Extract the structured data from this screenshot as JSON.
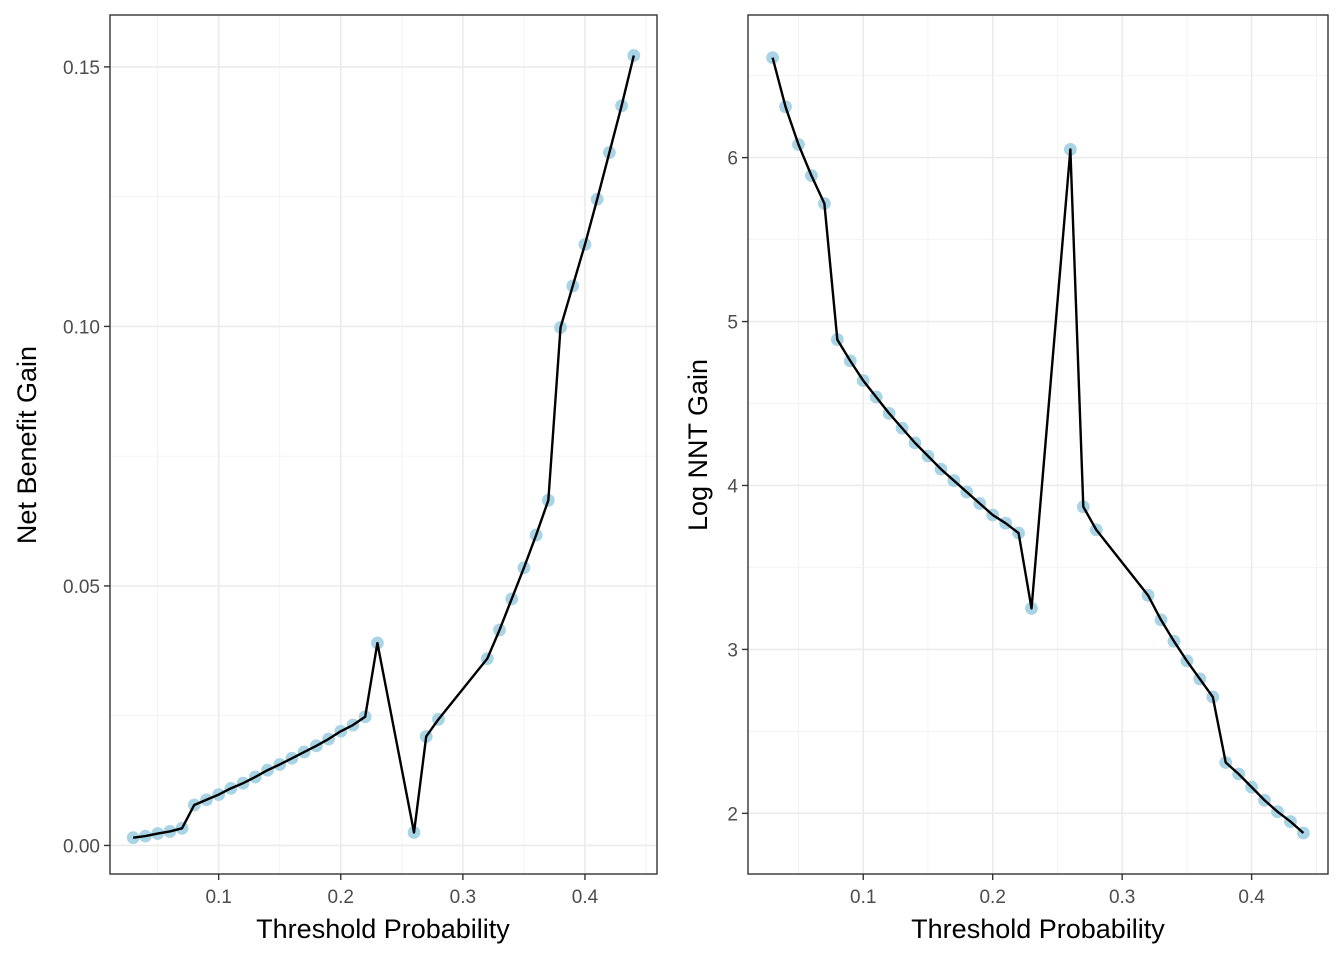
{
  "chart_data": [
    {
      "type": "line",
      "xlabel": "Threshold Probability",
      "ylabel": "Net Benefit Gain",
      "xlim": [
        0.011,
        0.459
      ],
      "ylim": [
        -0.0055,
        0.16
      ],
      "xticks": [
        0.1,
        0.2,
        0.3,
        0.4
      ],
      "xtick_labels": [
        "0.1",
        "0.2",
        "0.3",
        "0.4"
      ],
      "yticks": [
        0.0,
        0.05,
        0.1,
        0.15
      ],
      "ytick_labels": [
        "0.00",
        "0.05",
        "0.10",
        "0.15"
      ],
      "grid": true,
      "point_color": "#a8d4e6",
      "line_color": "#000000",
      "x": [
        0.03,
        0.04,
        0.05,
        0.06,
        0.07,
        0.08,
        0.09,
        0.1,
        0.11,
        0.12,
        0.13,
        0.14,
        0.15,
        0.16,
        0.17,
        0.18,
        0.19,
        0.2,
        0.21,
        0.22,
        0.23,
        0.26,
        0.27,
        0.28,
        0.32,
        0.33,
        0.34,
        0.35,
        0.36,
        0.37,
        0.38,
        0.39,
        0.4,
        0.41,
        0.42,
        0.43,
        0.44
      ],
      "y": [
        0.0015,
        0.0018,
        0.0023,
        0.0027,
        0.0033,
        0.0078,
        0.0088,
        0.0098,
        0.011,
        0.012,
        0.0132,
        0.0145,
        0.0156,
        0.0168,
        0.018,
        0.0192,
        0.0205,
        0.022,
        0.0232,
        0.0248,
        0.039,
        0.0025,
        0.021,
        0.0243,
        0.036,
        0.0415,
        0.0475,
        0.0535,
        0.0598,
        0.0665,
        0.0998,
        0.1078,
        0.1158,
        0.1245,
        0.1335,
        0.1425,
        0.1522
      ]
    },
    {
      "type": "line",
      "xlabel": "Threshold Probability",
      "ylabel": "Log NNT Gain",
      "xlim": [
        0.011,
        0.459
      ],
      "ylim": [
        1.63,
        6.87
      ],
      "xticks": [
        0.1,
        0.2,
        0.3,
        0.4
      ],
      "xtick_labels": [
        "0.1",
        "0.2",
        "0.3",
        "0.4"
      ],
      "yticks": [
        2,
        3,
        4,
        5,
        6
      ],
      "ytick_labels": [
        "2",
        "3",
        "4",
        "5",
        "6"
      ],
      "grid": true,
      "point_color": "#a8d4e6",
      "line_color": "#000000",
      "x": [
        0.03,
        0.04,
        0.05,
        0.06,
        0.07,
        0.08,
        0.09,
        0.1,
        0.11,
        0.12,
        0.13,
        0.14,
        0.15,
        0.16,
        0.17,
        0.18,
        0.19,
        0.2,
        0.21,
        0.22,
        0.23,
        0.26,
        0.27,
        0.28,
        0.32,
        0.33,
        0.34,
        0.35,
        0.36,
        0.37,
        0.38,
        0.39,
        0.4,
        0.41,
        0.42,
        0.43,
        0.44
      ],
      "y": [
        6.61,
        6.31,
        6.08,
        5.89,
        5.72,
        4.89,
        4.76,
        4.64,
        4.54,
        4.44,
        4.35,
        4.26,
        4.18,
        4.1,
        4.03,
        3.96,
        3.89,
        3.82,
        3.77,
        3.71,
        3.25,
        6.05,
        3.87,
        3.73,
        3.33,
        3.18,
        3.05,
        2.93,
        2.82,
        2.71,
        2.31,
        2.24,
        2.16,
        2.08,
        2.01,
        1.95,
        1.88
      ]
    }
  ]
}
